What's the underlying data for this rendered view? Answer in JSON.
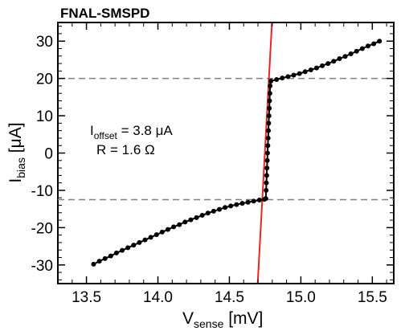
{
  "chart_data": {
    "type": "scatter",
    "title": "FNAL-SMSPD",
    "xlabel": {
      "main": "V",
      "sub": "sense",
      "unit": " [mV]"
    },
    "ylabel": {
      "main": "I",
      "sub": "bias",
      "unit": " [μA]"
    },
    "xlim": [
      13.3,
      15.65
    ],
    "ylim": [
      -35,
      35
    ],
    "xticks": [
      13.5,
      14.0,
      14.5,
      15.0,
      15.5
    ],
    "xtick_labels": [
      "13.5",
      "14.0",
      "14.5",
      "15.0",
      "15.5"
    ],
    "yticks": [
      -30,
      -20,
      -10,
      0,
      10,
      20,
      30
    ],
    "ytick_labels": [
      "-30",
      "-20",
      "-10",
      "0",
      "10",
      "20",
      "30"
    ],
    "grid": false,
    "annotations": {
      "ioffset_main": "I",
      "ioffset_sub": "offset",
      "ioffset_value": " = 3.8 μA",
      "resistance": "R = 1.6 Ω"
    },
    "reference_lines": [
      {
        "orientation": "horizontal",
        "y": 20,
        "style": "dashed",
        "color": "#808080"
      },
      {
        "orientation": "horizontal",
        "y": -12.5,
        "style": "dashed",
        "color": "#808080"
      }
    ],
    "fit_line": {
      "x": [
        14.698,
        14.798
      ],
      "y": [
        -35,
        35
      ],
      "color": "#e8251f"
    },
    "series": [
      {
        "color": "#000000",
        "points": [
          [
            13.55,
            -29.8
          ],
          [
            13.59,
            -29.0
          ],
          [
            13.63,
            -28.3
          ],
          [
            13.67,
            -27.6
          ],
          [
            13.71,
            -26.8
          ],
          [
            13.75,
            -26.1
          ],
          [
            13.79,
            -25.4
          ],
          [
            13.83,
            -24.7
          ],
          [
            13.87,
            -24.0
          ],
          [
            13.91,
            -23.3
          ],
          [
            13.95,
            -22.6
          ],
          [
            13.99,
            -21.9
          ],
          [
            14.03,
            -21.2
          ],
          [
            14.07,
            -20.5
          ],
          [
            14.11,
            -19.8
          ],
          [
            14.15,
            -19.2
          ],
          [
            14.19,
            -18.5
          ],
          [
            14.23,
            -17.9
          ],
          [
            14.27,
            -17.3
          ],
          [
            14.31,
            -16.7
          ],
          [
            14.35,
            -16.1
          ],
          [
            14.39,
            -15.6
          ],
          [
            14.43,
            -15.1
          ],
          [
            14.47,
            -14.6
          ],
          [
            14.51,
            -14.2
          ],
          [
            14.55,
            -13.8
          ],
          [
            14.59,
            -13.5
          ],
          [
            14.63,
            -13.2
          ],
          [
            14.67,
            -12.9
          ],
          [
            14.71,
            -12.6
          ],
          [
            14.745,
            -12.4
          ],
          [
            14.755,
            -12.2
          ],
          [
            14.757,
            -10.0
          ],
          [
            14.759,
            -8.0
          ],
          [
            14.761,
            -6.0
          ],
          [
            14.763,
            -4.0
          ],
          [
            14.765,
            -2.0
          ],
          [
            14.767,
            0.0
          ],
          [
            14.769,
            2.0
          ],
          [
            14.771,
            4.0
          ],
          [
            14.773,
            6.0
          ],
          [
            14.775,
            8.0
          ],
          [
            14.777,
            10.0
          ],
          [
            14.779,
            12.0
          ],
          [
            14.781,
            14.0
          ],
          [
            14.783,
            16.0
          ],
          [
            14.785,
            18.0
          ],
          [
            14.79,
            19.3
          ],
          [
            14.83,
            19.7
          ],
          [
            14.87,
            20.1
          ],
          [
            14.91,
            20.5
          ],
          [
            14.95,
            20.9
          ],
          [
            14.99,
            21.3
          ],
          [
            15.03,
            21.8
          ],
          [
            15.07,
            22.3
          ],
          [
            15.11,
            22.8
          ],
          [
            15.15,
            23.4
          ],
          [
            15.19,
            24.0
          ],
          [
            15.23,
            24.6
          ],
          [
            15.27,
            25.3
          ],
          [
            15.31,
            25.9
          ],
          [
            15.35,
            26.6
          ],
          [
            15.39,
            27.3
          ],
          [
            15.43,
            28.0
          ],
          [
            15.47,
            28.7
          ],
          [
            15.51,
            29.3
          ],
          [
            15.55,
            30.0
          ]
        ]
      }
    ]
  }
}
